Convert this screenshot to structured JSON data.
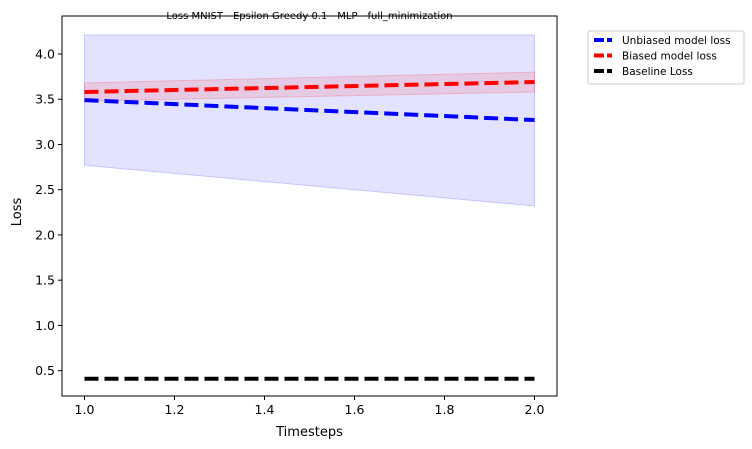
{
  "chart_data": {
    "type": "line",
    "title": "Loss MNIST - Epsilon Greedy 0.1 - MLP - full_minimization",
    "xlabel": "Timesteps",
    "ylabel": "Loss",
    "xlim": [
      0.95,
      2.05
    ],
    "ylim": [
      0.22,
      4.42
    ],
    "x_ticks": [
      1.0,
      1.2,
      1.4,
      1.6,
      1.8,
      2.0
    ],
    "x_tick_labels": [
      "1.0",
      "1.2",
      "1.4",
      "1.6",
      "1.8",
      "2.0"
    ],
    "y_ticks": [
      0.5,
      1.0,
      1.5,
      2.0,
      2.5,
      3.0,
      3.5,
      4.0
    ],
    "y_tick_labels": [
      "0.5",
      "1.0",
      "1.5",
      "2.0",
      "2.5",
      "3.0",
      "3.5",
      "4.0"
    ],
    "grid": false,
    "legend_placement": "outside-upper-right",
    "series": [
      {
        "name": "Unbiased model loss",
        "color": "#0000ff",
        "style": "dashed",
        "x": [
          1.0,
          2.0
        ],
        "y": [
          3.49,
          3.27
        ],
        "band_lower": [
          2.77,
          2.32
        ],
        "band_upper": [
          4.21,
          4.21
        ],
        "band_color": "#0000ff"
      },
      {
        "name": "Biased model loss",
        "color": "#ff0000",
        "style": "dashed",
        "x": [
          1.0,
          2.0
        ],
        "y": [
          3.58,
          3.69
        ],
        "band_lower": [
          3.48,
          3.58
        ],
        "band_upper": [
          3.68,
          3.8
        ],
        "band_color": "#ff0000"
      },
      {
        "name": "Baseline Loss",
        "color": "#000000",
        "style": "dashed",
        "x": [
          1.0,
          2.0
        ],
        "y": [
          0.41,
          0.41
        ]
      }
    ]
  }
}
